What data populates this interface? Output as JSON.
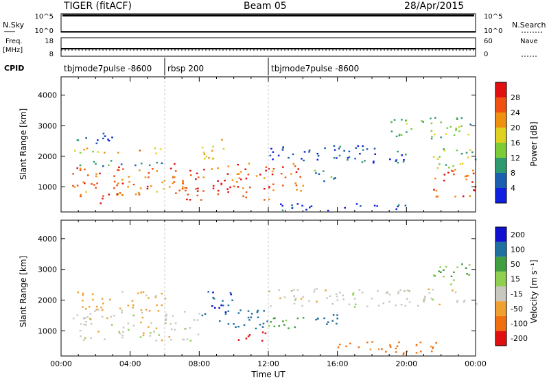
{
  "header": {
    "station": "TIGER (fitACF)",
    "beam": "Beam 05",
    "date": "28/Apr/2015"
  },
  "labels": {
    "nsky": "N.Sky",
    "nsearch": "N.Search",
    "freq1": "Freq.",
    "freq2": "[MHz]",
    "nave": "Nave",
    "cpid": "CPID",
    "time_ut": "Time UT",
    "slant_range": "Slant Range [km]",
    "power_label": "Power [dB]",
    "velocity_label": "Velocity [m s⁻¹]",
    "nsky_ticks": [
      "10^5",
      "10^0"
    ],
    "nave_ticks": [
      "60",
      "0"
    ],
    "freq_ticks": [
      "18",
      "8"
    ]
  },
  "cpid_segments": [
    {
      "name": "tbjmode7pulse -8600",
      "start": 0,
      "end": 6
    },
    {
      "name": "rbsp 200",
      "start": 6,
      "end": 12
    },
    {
      "name": "tbjmode7pulse -8600",
      "start": 12,
      "end": 24
    }
  ],
  "chart_data": [
    {
      "type": "heatmap",
      "title": "Power",
      "xlabel": "Time UT",
      "ylabel": "Slant Range [km]",
      "xlim": [
        0,
        24
      ],
      "ylim": [
        180,
        4600
      ],
      "xticks": [
        "00:00",
        "04:00",
        "08:00",
        "12:00",
        "16:00",
        "20:00",
        "00:00"
      ],
      "yticks": [
        1000,
        2000,
        3000,
        4000
      ],
      "colorbar": {
        "label": "Power [dB]",
        "ticks": [
          "4",
          "8",
          "12",
          "16",
          "20",
          "24",
          "28"
        ],
        "range": [
          0,
          30
        ]
      },
      "regions": [
        {
          "t0": 0.6,
          "t1": 6.5,
          "r0": 700,
          "r1": 1700,
          "value": 23
        },
        {
          "t0": 0.6,
          "t1": 6.0,
          "r0": 1700,
          "r1": 1900,
          "value": 10
        },
        {
          "t0": 0.6,
          "t1": 6.0,
          "r0": 2100,
          "r1": 2300,
          "value": 18
        },
        {
          "t0": 0.6,
          "t1": 3.0,
          "r0": 2400,
          "r1": 2800,
          "value": 5
        },
        {
          "t0": 2.0,
          "t1": 3.0,
          "r0": 480,
          "r1": 650,
          "value": 28
        },
        {
          "t0": 6.5,
          "t1": 12.0,
          "r0": 600,
          "r1": 1800,
          "value": 26
        },
        {
          "t0": 8.0,
          "t1": 9.5,
          "r0": 1900,
          "r1": 2600,
          "value": 20
        },
        {
          "t0": 12.0,
          "t1": 14.0,
          "r0": 800,
          "r1": 1800,
          "value": 24
        },
        {
          "t0": 12.0,
          "t1": 20.0,
          "r0": 1800,
          "r1": 2400,
          "value": 5
        },
        {
          "t0": 14.5,
          "t1": 16.0,
          "r0": 1100,
          "r1": 1600,
          "value": 8
        },
        {
          "t0": 21.5,
          "t1": 24.0,
          "r0": 700,
          "r1": 1600,
          "value": 24
        },
        {
          "t0": 21.5,
          "t1": 24.0,
          "r0": 1600,
          "r1": 2300,
          "value": 14
        },
        {
          "t0": 19.0,
          "t1": 24.0,
          "r0": 2600,
          "r1": 3300,
          "value": 12
        },
        {
          "t0": 12.5,
          "t1": 20.0,
          "r0": 250,
          "r1": 500,
          "value": 3
        }
      ]
    },
    {
      "type": "heatmap",
      "title": "Velocity",
      "xlabel": "Time UT",
      "ylabel": "Slant Range [km]",
      "xlim": [
        0,
        24
      ],
      "ylim": [
        180,
        4600
      ],
      "xticks": [
        "00:00",
        "04:00",
        "08:00",
        "12:00",
        "16:00",
        "20:00",
        "00:00"
      ],
      "yticks": [
        1000,
        2000,
        3000,
        4000
      ],
      "colorbar": {
        "label": "Velocity [m s⁻¹]",
        "ticks": [
          "200",
          "100",
          "50",
          "15",
          "-15",
          "-50",
          "-100",
          "-200"
        ]
      },
      "regions": [
        {
          "t0": 0.6,
          "t1": 8.0,
          "r0": 700,
          "r1": 1700,
          "value": 0
        },
        {
          "t0": 0.6,
          "t1": 6.0,
          "r0": 1700,
          "r1": 2300,
          "value": -30
        },
        {
          "t0": 8.0,
          "t1": 10.0,
          "r0": 1500,
          "r1": 2300,
          "value": 200
        },
        {
          "t0": 9.0,
          "t1": 12.0,
          "r0": 1000,
          "r1": 1700,
          "value": 180
        },
        {
          "t0": 10.0,
          "t1": 12.0,
          "r0": 700,
          "r1": 1000,
          "value": -200
        },
        {
          "t0": 12.0,
          "t1": 14.0,
          "r0": 1000,
          "r1": 1600,
          "value": 60
        },
        {
          "t0": 12.0,
          "t1": 24.0,
          "r0": 1800,
          "r1": 2400,
          "value": 0
        },
        {
          "t0": 14.5,
          "t1": 16.5,
          "r0": 1100,
          "r1": 1600,
          "value": 120
        },
        {
          "t0": 16.0,
          "t1": 22.0,
          "r0": 250,
          "r1": 700,
          "value": -60
        },
        {
          "t0": 21.5,
          "t1": 24.0,
          "r0": 2500,
          "r1": 3200,
          "value": 40
        }
      ]
    }
  ],
  "colors": {
    "power_scale": [
      "#1020e0",
      "#1a5fb0",
      "#2e9a70",
      "#7ccc38",
      "#e0d020",
      "#f09010",
      "#f05010",
      "#e01010"
    ],
    "velocity_scale": [
      "#1010d0",
      "#2070a0",
      "#40a040",
      "#90d050",
      "#c8c8c0",
      "#f0a030",
      "#f07010",
      "#e01010"
    ]
  }
}
